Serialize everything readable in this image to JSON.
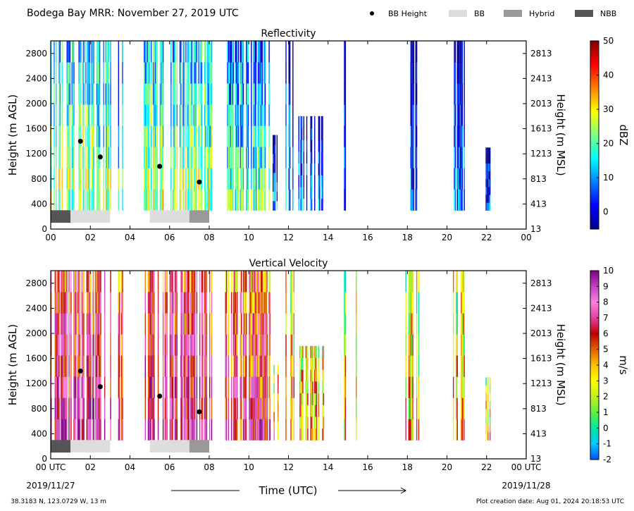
{
  "header": {
    "title": "Bodega Bay MRR:  November 27, 2019 UTC",
    "legend": [
      {
        "label": "BB Height",
        "kind": "dot",
        "color": "#000000"
      },
      {
        "label": "BB",
        "kind": "bar",
        "color": "#dddddd"
      },
      {
        "label": "Hybrid",
        "kind": "bar",
        "color": "#999999"
      },
      {
        "label": "NBB",
        "kind": "bar",
        "color": "#555555"
      }
    ]
  },
  "footer": {
    "location": "38.3183 N, 123.0729 W, 13 m",
    "created": "Plot creation date: Aug 01, 2024 20:18:53 UTC",
    "time_label": "Time (UTC)",
    "start_date": "2019/11/27",
    "end_date": "2019/11/28"
  },
  "chart_data": [
    {
      "type": "heatmap",
      "title": "Reflectivity",
      "ylabel": "Height (m AGL)",
      "ylabel_right": "Height (m MSL)",
      "xlim": [
        0,
        24
      ],
      "ylim": [
        0,
        3000
      ],
      "xticks": [
        "00",
        "02",
        "04",
        "06",
        "08",
        "10",
        "12",
        "14",
        "16",
        "18",
        "20",
        "22",
        "00"
      ],
      "yticks_left": [
        "0",
        "400",
        "800",
        "1200",
        "1600",
        "2000",
        "2400",
        "2800"
      ],
      "yticks_right": [
        "13",
        "413",
        "813",
        "1213",
        "1613",
        "2013",
        "2413",
        "2813"
      ],
      "colorbar": {
        "label": "dBZ",
        "min": -5,
        "max": 50,
        "ticks": [
          "0",
          "10",
          "20",
          "30",
          "40",
          "50"
        ],
        "tick_values": [
          0,
          10,
          20,
          30,
          40,
          50
        ],
        "colors": [
          "#00008f",
          "#0000ff",
          "#0080ff",
          "#00ffff",
          "#80ff80",
          "#ffff00",
          "#ff8000",
          "#ff0000",
          "#800000"
        ]
      },
      "bb_height": [
        {
          "x": 1.5,
          "y": 1400
        },
        {
          "x": 2.5,
          "y": 1150
        },
        {
          "x": 5.5,
          "y": 1000
        },
        {
          "x": 7.5,
          "y": 750
        }
      ],
      "bb_type": [
        {
          "start": 0,
          "end": 1,
          "type": "NBB"
        },
        {
          "start": 1,
          "end": 3,
          "type": "BB"
        },
        {
          "start": 5,
          "end": 7,
          "type": "BB"
        },
        {
          "start": 7,
          "end": 8,
          "type": "Hybrid"
        }
      ]
    },
    {
      "type": "heatmap",
      "title": "Vertical Velocity",
      "ylabel": "Height (m AGL)",
      "ylabel_right": "Height (m MSL)",
      "xlim": [
        0,
        24
      ],
      "ylim": [
        0,
        3000
      ],
      "xticks": [
        "00 UTC",
        "02",
        "04",
        "06",
        "08",
        "10",
        "12",
        "14",
        "16",
        "18",
        "20",
        "22",
        "00 UTC"
      ],
      "yticks_left": [
        "0",
        "400",
        "800",
        "1200",
        "1600",
        "2000",
        "2400",
        "2800"
      ],
      "yticks_right": [
        "13",
        "413",
        "813",
        "1213",
        "1613",
        "2013",
        "2413",
        "2813"
      ],
      "colorbar": {
        "label": "m/s",
        "min": -2,
        "max": 10,
        "ticks": [
          "-2",
          "-1",
          "0",
          "1",
          "2",
          "3",
          "4",
          "5",
          "6",
          "7",
          "8",
          "9",
          "10"
        ],
        "tick_values": [
          -2,
          -1,
          0,
          1,
          2,
          3,
          4,
          5,
          6,
          7,
          8,
          9,
          10
        ],
        "colors": [
          "#0050ff",
          "#00c8ff",
          "#00e8a0",
          "#60f040",
          "#c0f020",
          "#ffff00",
          "#ffc000",
          "#e06000",
          "#c00000",
          "#e040a0",
          "#ff80e0",
          "#c040c0",
          "#800080"
        ]
      },
      "bb_height": [
        {
          "x": 1.5,
          "y": 1400
        },
        {
          "x": 2.5,
          "y": 1150
        },
        {
          "x": 5.5,
          "y": 1000
        },
        {
          "x": 7.5,
          "y": 750
        }
      ],
      "bb_type": [
        {
          "start": 0,
          "end": 1,
          "type": "NBB"
        },
        {
          "start": 1,
          "end": 3,
          "type": "BB"
        },
        {
          "start": 5,
          "end": 7,
          "type": "BB"
        },
        {
          "start": 7,
          "end": 8,
          "type": "Hybrid"
        }
      ]
    }
  ]
}
